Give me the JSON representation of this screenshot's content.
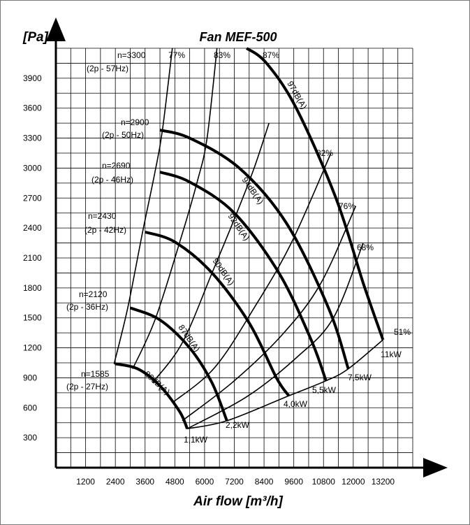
{
  "chart_data": {
    "type": "line",
    "title": "Fan MEF-500",
    "xlabel": "Air flow [m³/h]",
    "ylabel": "[Pa]",
    "xlim": [
      0,
      14400
    ],
    "ylim": [
      0,
      4200
    ],
    "x_ticks": [
      1200,
      2400,
      3600,
      4800,
      6000,
      7200,
      8400,
      9600,
      10800,
      12000,
      13200
    ],
    "y_ticks": [
      300,
      600,
      900,
      1200,
      1500,
      1800,
      2100,
      2400,
      2700,
      3000,
      3300,
      3600,
      3900
    ],
    "grid": true,
    "speed_curves": [
      {
        "label": "n=1585",
        "sublabel": "(2p - 27Hz)",
        "points": [
          [
            2400,
            1040
          ],
          [
            3300,
            990
          ],
          [
            4200,
            820
          ],
          [
            5000,
            560
          ],
          [
            5300,
            390
          ]
        ]
      },
      {
        "label": "n=2120",
        "sublabel": "(2p - 36Hz)",
        "points": [
          [
            3000,
            1600
          ],
          [
            4200,
            1480
          ],
          [
            5400,
            1200
          ],
          [
            6300,
            850
          ],
          [
            6900,
            470
          ]
        ]
      },
      {
        "label": "n=2430",
        "sublabel": "(2p - 42Hz)",
        "points": [
          [
            3600,
            2360
          ],
          [
            4800,
            2260
          ],
          [
            6300,
            1950
          ],
          [
            7800,
            1450
          ],
          [
            8900,
            900
          ],
          [
            9400,
            720
          ]
        ]
      },
      {
        "label": "n=2690",
        "sublabel": "(2p - 46Hz)",
        "points": [
          [
            4200,
            2960
          ],
          [
            5400,
            2860
          ],
          [
            7200,
            2550
          ],
          [
            9000,
            1950
          ],
          [
            10300,
            1280
          ],
          [
            10900,
            870
          ]
        ]
      },
      {
        "label": "n=2900",
        "sublabel": "(2p - 50Hz)",
        "points": [
          [
            4200,
            3380
          ],
          [
            5400,
            3300
          ],
          [
            7400,
            3000
          ],
          [
            9300,
            2450
          ],
          [
            11000,
            1600
          ],
          [
            11800,
            990
          ]
        ]
      },
      {
        "label": "n=3300",
        "sublabel": "(2p - 57Hz)",
        "points": [
          [
            7700,
            4200
          ],
          [
            8500,
            4050
          ],
          [
            9700,
            3600
          ],
          [
            11300,
            2700
          ],
          [
            12400,
            1850
          ],
          [
            13200,
            1280
          ]
        ]
      }
    ],
    "efficiency_curves": [
      {
        "label": "77%",
        "points": [
          [
            2350,
            1040
          ],
          [
            2900,
            1600
          ],
          [
            3500,
            2360
          ],
          [
            4000,
            2960
          ],
          [
            4300,
            3380
          ],
          [
            4700,
            4200
          ]
        ]
      },
      {
        "label": "83%",
        "points": [
          [
            3100,
            990
          ],
          [
            4000,
            1480
          ],
          [
            5000,
            2260
          ],
          [
            5700,
            2860
          ],
          [
            6100,
            3300
          ],
          [
            6500,
            4200
          ]
        ]
      },
      {
        "label": "87%",
        "points": [
          [
            3900,
            850
          ],
          [
            5100,
            1250
          ],
          [
            6300,
            1950
          ],
          [
            7300,
            2550
          ],
          [
            8000,
            3000
          ],
          [
            8600,
            3450
          ]
        ]
      },
      {
        "label": "82%",
        "points": [
          [
            4700,
            650
          ],
          [
            6400,
            1000
          ],
          [
            8000,
            1600
          ],
          [
            9500,
            2250
          ],
          [
            11100,
            3150
          ]
        ]
      },
      {
        "label": "76%",
        "points": [
          [
            5100,
            470
          ],
          [
            7200,
            870
          ],
          [
            9200,
            1350
          ],
          [
            10700,
            1850
          ],
          [
            12100,
            2620
          ]
        ]
      },
      {
        "label": "68%",
        "points": [
          [
            5300,
            390
          ],
          [
            7700,
            710
          ],
          [
            9700,
            1100
          ],
          [
            11200,
            1500
          ],
          [
            12400,
            2250
          ]
        ]
      }
    ],
    "power_line": {
      "points": [
        [
          5300,
          390
        ],
        [
          6900,
          470
        ],
        [
          9400,
          720
        ],
        [
          10900,
          870
        ],
        [
          11800,
          990
        ],
        [
          13200,
          1280
        ]
      ]
    },
    "power_labels": [
      "1,1kW",
      "2,2kW",
      "4,0kW",
      "5,5kW",
      "7,5kW",
      "11kW"
    ],
    "extra_labels": [
      "51%"
    ],
    "noise_labels": [
      "80dB(A)",
      "87dB(A)",
      "90dB(A)",
      "92dB(A)",
      "94dB(A)",
      "97dB(A)"
    ]
  }
}
